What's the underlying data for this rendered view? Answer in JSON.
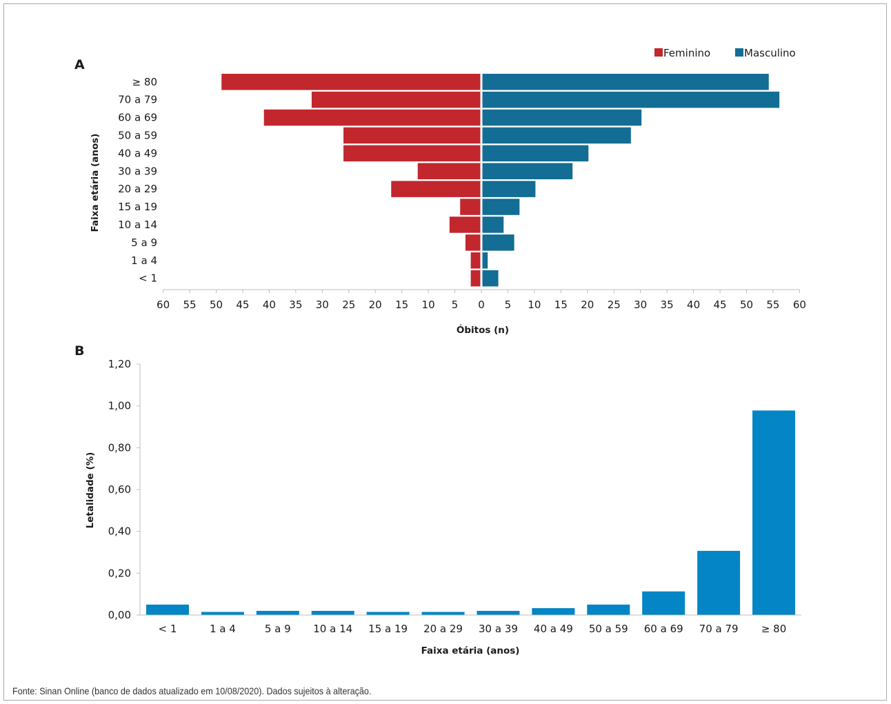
{
  "panels": {
    "a_letter": "A",
    "b_letter": "B"
  },
  "source_note": "Fonte: Sinan Online (banco de dados atualizado em 10/08/2020). Dados sujeitos à alteração.",
  "colors": {
    "feminino": "#c1272d",
    "masculino": "#136d94",
    "letalidade": "#0485c5",
    "axis": "#bdbdbd"
  },
  "chart_data": [
    {
      "type": "bar",
      "orientation": "horizontal",
      "layout": "population-pyramid",
      "categories": [
        "≥ 80",
        "70 a 79",
        "60 a 69",
        "50 a 59",
        "40 a 49",
        "30 a 39",
        "20 a 29",
        "15 a 19",
        "10 a 14",
        "5 a 9",
        "1 a 4",
        "< 1"
      ],
      "series": [
        {
          "name": "Feminino",
          "values": [
            49,
            32,
            41,
            26,
            26,
            12,
            17,
            4,
            6,
            3,
            2,
            2
          ]
        },
        {
          "name": "Masculino",
          "values": [
            54,
            56,
            30,
            28,
            20,
            17,
            10,
            7,
            4,
            6,
            1,
            3
          ]
        }
      ],
      "xlabel": "Óbitos (n)",
      "ylabel": "Faixa etária (anos)",
      "xlim": [
        -60,
        60
      ],
      "xticks": [
        "60",
        "55",
        "50",
        "45",
        "40",
        "35",
        "30",
        "25",
        "20",
        "15",
        "10",
        "5",
        "0",
        "5",
        "10",
        "15",
        "20",
        "25",
        "30",
        "35",
        "40",
        "45",
        "50",
        "55",
        "60"
      ],
      "legend": "top-right",
      "grid": false
    },
    {
      "type": "bar",
      "categories": [
        "< 1",
        "1 a 4",
        "5 a 9",
        "10 a 14",
        "15 a 19",
        "20 a 29",
        "30 a 39",
        "40 a 49",
        "50 a 59",
        "60 a 69",
        "70 a 79",
        "≥ 80"
      ],
      "values": [
        0.05,
        0.015,
        0.02,
        0.02,
        0.015,
        0.015,
        0.02,
        0.033,
        0.05,
        0.113,
        0.307,
        0.978
      ],
      "xlabel": "Faixa etária (anos)",
      "ylabel": "Letalidade (%)",
      "ylim": [
        0,
        1.2
      ],
      "yticks": [
        "0,00",
        "0,20",
        "0,40",
        "0,60",
        "0,80",
        "1,00",
        "1,20"
      ],
      "grid": false
    }
  ]
}
